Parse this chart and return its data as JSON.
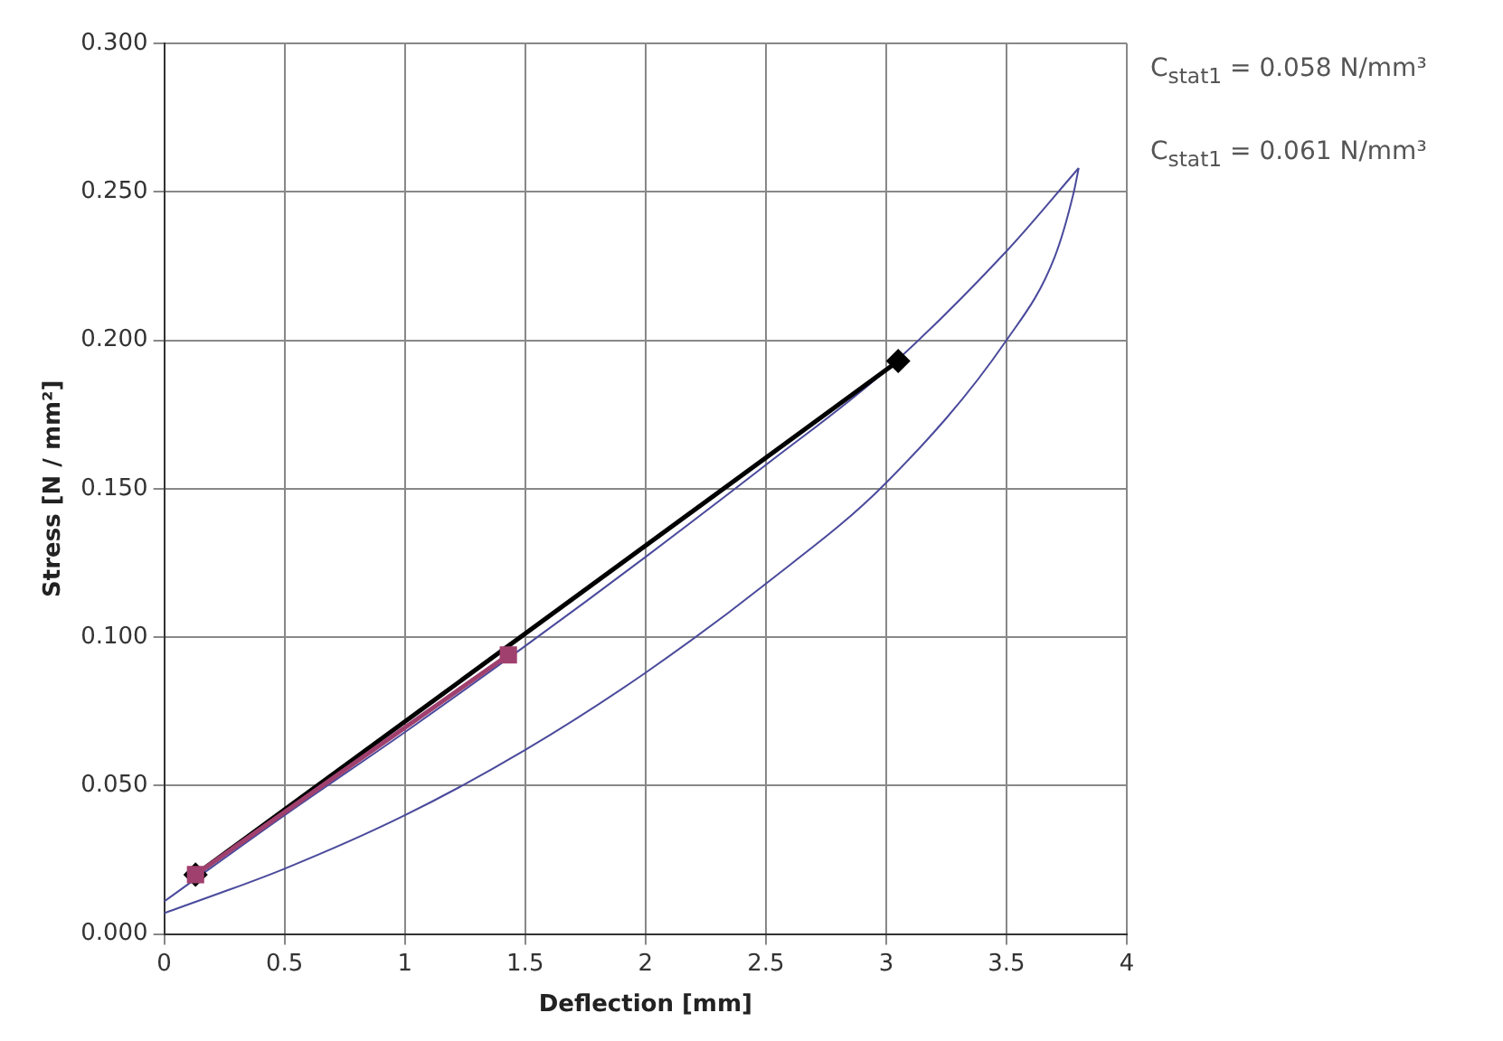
{
  "chart_data": {
    "type": "line",
    "xlabel": "Deflection [mm]",
    "ylabel": "Stress [N / mm²]",
    "annotations": [
      "C$_{stat1}$ = 0.058 N/mm³",
      "C$_{stat1}$ = 0.061 N/mm³"
    ],
    "xlim": [
      0,
      4
    ],
    "xticks": [
      0,
      0.5,
      1,
      1.5,
      2,
      2.5,
      3,
      3.5,
      4
    ],
    "ylim": [
      0,
      0.3
    ],
    "yticks": [
      {
        "value": 0,
        "label": "0.000"
      },
      {
        "value": 0.05,
        "label": "0.050"
      },
      {
        "value": 0.1,
        "label": "0.100"
      },
      {
        "value": 0.15,
        "label": "0.150"
      },
      {
        "value": 0.2,
        "label": "0.200"
      },
      {
        "value": 0.25,
        "label": "0.250"
      },
      {
        "value": 0.3,
        "label": "0.300"
      }
    ],
    "grid": true,
    "legend": false,
    "series": [
      {
        "color": "#4a4a9c",
        "marker": "none",
        "x": [
          0,
          0.5,
          1,
          1.5,
          2,
          2.5,
          3,
          3.5,
          3.8
        ],
        "values": [
          0.011,
          0.04,
          0.068,
          0.097,
          0.127,
          0.158,
          0.19,
          0.23,
          0.258
        ]
      },
      {
        "color": "#4a4a9c",
        "marker": "none",
        "x": [
          0,
          0.5,
          1,
          1.5,
          2,
          2.5,
          3,
          3.5,
          3.7,
          3.78,
          3.8
        ],
        "values": [
          0.007,
          0.022,
          0.04,
          0.062,
          0.088,
          0.118,
          0.152,
          0.2,
          0.228,
          0.25,
          0.258
        ]
      },
      {
        "color": "#000000",
        "marker": "diamond",
        "x": [
          0.13,
          3.05
        ],
        "values": [
          0.02,
          0.193
        ]
      },
      {
        "color": "#a0406e",
        "marker": "square",
        "x": [
          0.13,
          1.43
        ],
        "values": [
          0.02,
          0.094
        ]
      }
    ]
  }
}
